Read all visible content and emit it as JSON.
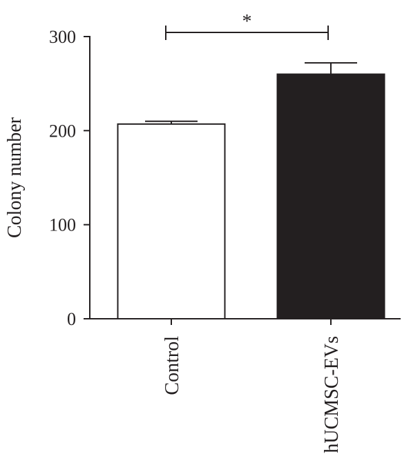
{
  "chart_data": {
    "type": "bar",
    "title": "",
    "xlabel": "",
    "ylabel": "Colony number",
    "ylim": [
      0,
      300
    ],
    "yticks": [
      0,
      100,
      200,
      300
    ],
    "categories": [
      "Control",
      "hUCMSC-EVs"
    ],
    "values": [
      207,
      260
    ],
    "errors": [
      3,
      12
    ],
    "bar_colors": [
      "#ffffff",
      "#231f20"
    ],
    "significance": [
      {
        "between": [
          "Control",
          "hUCMSC-EVs"
        ],
        "label": "*"
      }
    ],
    "grid": false,
    "legend": "none"
  }
}
